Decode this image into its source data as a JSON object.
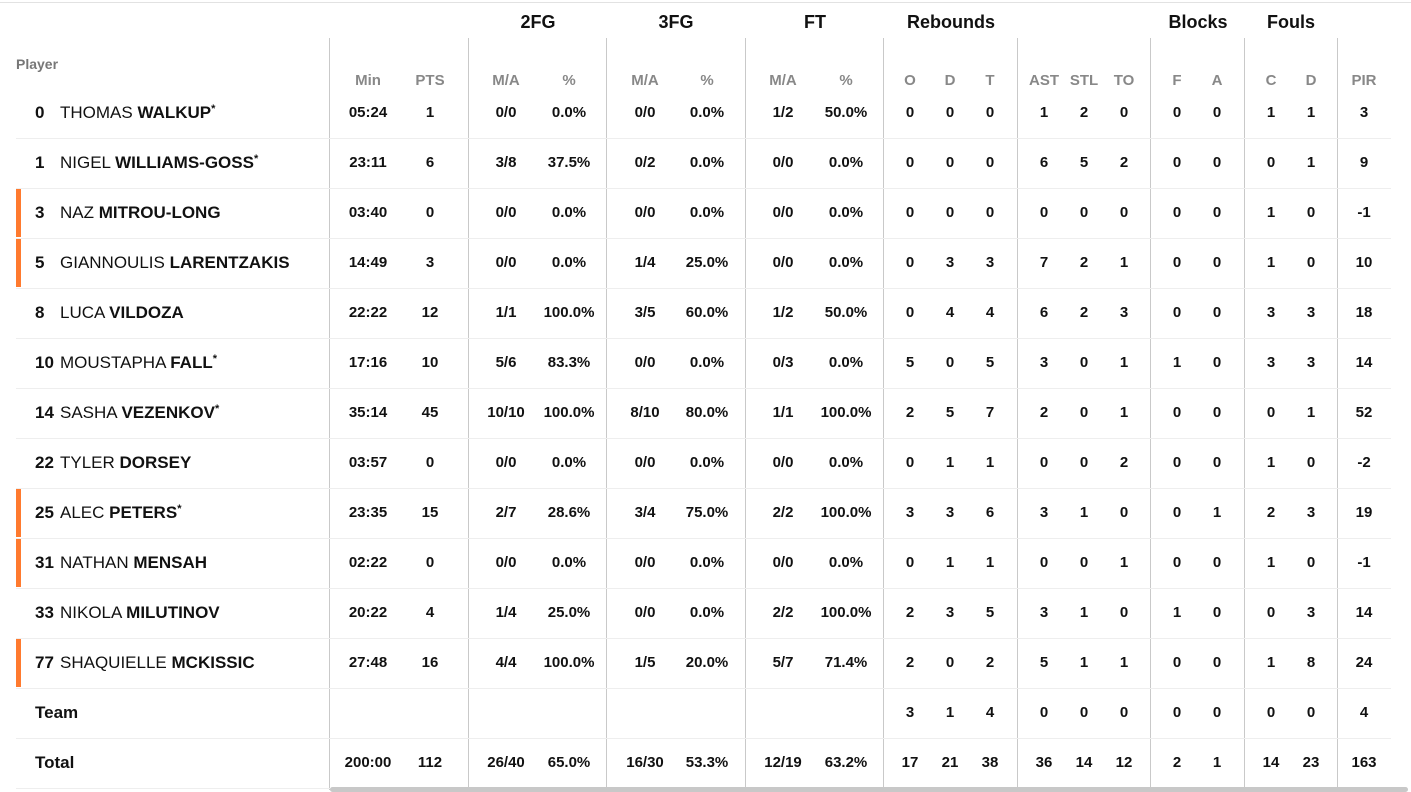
{
  "header": {
    "player": "Player",
    "groups": [
      "2FG",
      "3FG",
      "FT",
      "Rebounds",
      "Blocks",
      "Fouls"
    ],
    "columns": [
      "Min",
      "PTS",
      "M/A",
      "%",
      "M/A",
      "%",
      "M/A",
      "%",
      "O",
      "D",
      "T",
      "AST",
      "STL",
      "TO",
      "F",
      "A",
      "C",
      "D",
      "PIR"
    ]
  },
  "colors": {
    "accent": "#ff7a2e"
  },
  "players": [
    {
      "num": "0",
      "first": "THOMAS",
      "last": "WALKUP",
      "star": "*",
      "accent": false,
      "stats": [
        "05:24",
        "1",
        "0/0",
        "0.0%",
        "0/0",
        "0.0%",
        "1/2",
        "50.0%",
        "0",
        "0",
        "0",
        "1",
        "2",
        "0",
        "0",
        "0",
        "1",
        "1",
        "3"
      ]
    },
    {
      "num": "1",
      "first": "NIGEL",
      "last": "WILLIAMS-GOSS",
      "star": "*",
      "accent": false,
      "stats": [
        "23:11",
        "6",
        "3/8",
        "37.5%",
        "0/2",
        "0.0%",
        "0/0",
        "0.0%",
        "0",
        "0",
        "0",
        "6",
        "5",
        "2",
        "0",
        "0",
        "0",
        "1",
        "9"
      ]
    },
    {
      "num": "3",
      "first": "NAZ",
      "last": "MITROU-LONG",
      "star": "",
      "accent": true,
      "stats": [
        "03:40",
        "0",
        "0/0",
        "0.0%",
        "0/0",
        "0.0%",
        "0/0",
        "0.0%",
        "0",
        "0",
        "0",
        "0",
        "0",
        "0",
        "0",
        "0",
        "1",
        "0",
        "-1"
      ]
    },
    {
      "num": "5",
      "first": "GIANNOULIS",
      "last": "LARENTZAKIS",
      "star": "",
      "accent": true,
      "stats": [
        "14:49",
        "3",
        "0/0",
        "0.0%",
        "1/4",
        "25.0%",
        "0/0",
        "0.0%",
        "0",
        "3",
        "3",
        "7",
        "2",
        "1",
        "0",
        "0",
        "1",
        "0",
        "10"
      ]
    },
    {
      "num": "8",
      "first": "LUCA",
      "last": "VILDOZA",
      "star": "",
      "accent": false,
      "stats": [
        "22:22",
        "12",
        "1/1",
        "100.0%",
        "3/5",
        "60.0%",
        "1/2",
        "50.0%",
        "0",
        "4",
        "4",
        "6",
        "2",
        "3",
        "0",
        "0",
        "3",
        "3",
        "18"
      ]
    },
    {
      "num": "10",
      "first": "MOUSTAPHA",
      "last": "FALL",
      "star": "*",
      "accent": false,
      "stats": [
        "17:16",
        "10",
        "5/6",
        "83.3%",
        "0/0",
        "0.0%",
        "0/3",
        "0.0%",
        "5",
        "0",
        "5",
        "3",
        "0",
        "1",
        "1",
        "0",
        "3",
        "3",
        "14"
      ]
    },
    {
      "num": "14",
      "first": "SASHA",
      "last": "VEZENKOV",
      "star": "*",
      "accent": false,
      "stats": [
        "35:14",
        "45",
        "10/10",
        "100.0%",
        "8/10",
        "80.0%",
        "1/1",
        "100.0%",
        "2",
        "5",
        "7",
        "2",
        "0",
        "1",
        "0",
        "0",
        "0",
        "1",
        "52"
      ]
    },
    {
      "num": "22",
      "first": "TYLER",
      "last": "DORSEY",
      "star": "",
      "accent": false,
      "stats": [
        "03:57",
        "0",
        "0/0",
        "0.0%",
        "0/0",
        "0.0%",
        "0/0",
        "0.0%",
        "0",
        "1",
        "1",
        "0",
        "0",
        "2",
        "0",
        "0",
        "1",
        "0",
        "-2"
      ]
    },
    {
      "num": "25",
      "first": "ALEC",
      "last": "PETERS",
      "star": "*",
      "accent": true,
      "stats": [
        "23:35",
        "15",
        "2/7",
        "28.6%",
        "3/4",
        "75.0%",
        "2/2",
        "100.0%",
        "3",
        "3",
        "6",
        "3",
        "1",
        "0",
        "0",
        "1",
        "2",
        "3",
        "19"
      ]
    },
    {
      "num": "31",
      "first": "NATHAN",
      "last": "MENSAH",
      "star": "",
      "accent": true,
      "stats": [
        "02:22",
        "0",
        "0/0",
        "0.0%",
        "0/0",
        "0.0%",
        "0/0",
        "0.0%",
        "0",
        "1",
        "1",
        "0",
        "0",
        "1",
        "0",
        "0",
        "1",
        "0",
        "-1"
      ]
    },
    {
      "num": "33",
      "first": "NIKOLA",
      "last": "MILUTINOV",
      "star": "",
      "accent": false,
      "stats": [
        "20:22",
        "4",
        "1/4",
        "25.0%",
        "0/0",
        "0.0%",
        "2/2",
        "100.0%",
        "2",
        "3",
        "5",
        "3",
        "1",
        "0",
        "1",
        "0",
        "0",
        "3",
        "14"
      ]
    },
    {
      "num": "77",
      "first": "SHAQUIELLE",
      "last": "MCKISSIC",
      "star": "",
      "accent": true,
      "stats": [
        "27:48",
        "16",
        "4/4",
        "100.0%",
        "1/5",
        "20.0%",
        "5/7",
        "71.4%",
        "2",
        "0",
        "2",
        "5",
        "1",
        "1",
        "0",
        "0",
        "1",
        "8",
        "24"
      ]
    }
  ],
  "team": {
    "label": "Team",
    "stats": [
      "",
      "",
      "",
      "",
      "",
      "",
      "",
      "",
      "3",
      "1",
      "4",
      "0",
      "0",
      "0",
      "0",
      "0",
      "0",
      "0",
      "4"
    ]
  },
  "total": {
    "label": "Total",
    "stats": [
      "200:00",
      "112",
      "26/40",
      "65.0%",
      "16/30",
      "53.3%",
      "12/19",
      "63.2%",
      "17",
      "21",
      "38",
      "36",
      "14",
      "12",
      "2",
      "1",
      "14",
      "23",
      "163"
    ]
  }
}
